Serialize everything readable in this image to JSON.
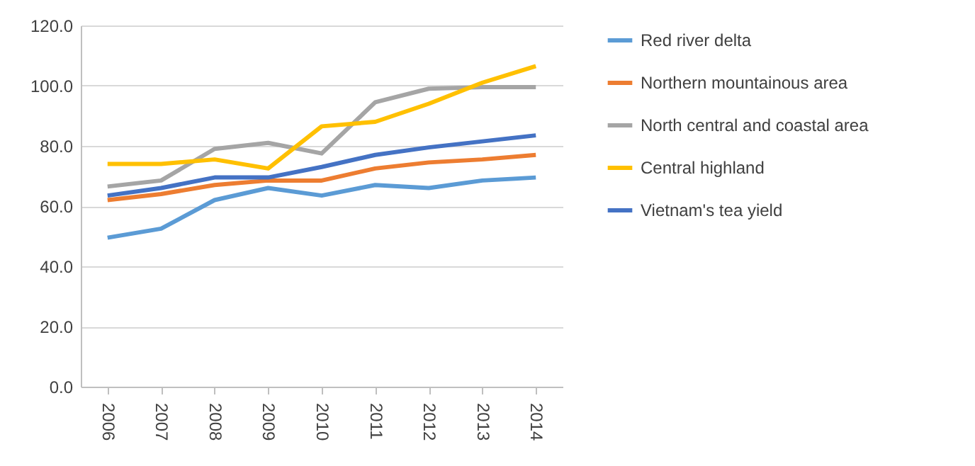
{
  "chart_data": {
    "type": "line",
    "categories": [
      "2006",
      "2007",
      "2008",
      "2009",
      "2010",
      "2011",
      "2012",
      "2013",
      "2014"
    ],
    "series": [
      {
        "name": "Red river delta",
        "color": "#5b9bd5",
        "values": [
          49.5,
          52.5,
          62,
          66,
          63.5,
          67,
          66,
          68.5,
          69.5
        ]
      },
      {
        "name": "Northern mountainous area",
        "color": "#ed7d31",
        "values": [
          62,
          64,
          67,
          68.5,
          68.5,
          72.5,
          74.5,
          75.5,
          77
        ]
      },
      {
        "name": "North central and coastal area",
        "color": "#a5a5a5",
        "values": [
          66.5,
          68.5,
          79,
          81,
          77.5,
          94.5,
          99,
          99.5,
          99.5
        ]
      },
      {
        "name": "Central highland",
        "color": "#ffc000",
        "values": [
          74,
          74,
          75.5,
          72.5,
          86.5,
          88,
          94,
          101,
          106.5
        ]
      },
      {
        "name": "Vietnam's tea yield",
        "color": "#4472c4",
        "values": [
          63.5,
          66,
          69.5,
          69.5,
          73,
          77,
          79.5,
          81.5,
          83.5
        ]
      }
    ],
    "ylim": [
      0,
      120
    ],
    "yticks": [
      {
        "value": 0,
        "label": "0.0"
      },
      {
        "value": 20,
        "label": "20.0"
      },
      {
        "value": 40,
        "label": "40.0"
      },
      {
        "value": 60,
        "label": "60.0"
      },
      {
        "value": 80,
        "label": "80.0"
      },
      {
        "value": 100,
        "label": "100.0"
      },
      {
        "value": 120,
        "label": "120.0"
      }
    ],
    "grid": "y",
    "legend": "right",
    "marker": "none",
    "line_style": "solid"
  }
}
